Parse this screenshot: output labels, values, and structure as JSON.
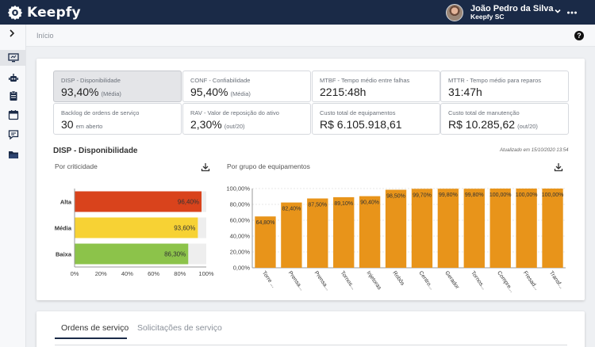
{
  "app": {
    "name": "Keepfy"
  },
  "user": {
    "name": "João Pedro da Silva",
    "org": "Keepfy SC"
  },
  "breadcrumb": "Início",
  "kpis": [
    {
      "label": "DISP - Disponibilidade",
      "value": "93,40%",
      "unit": "(Média)",
      "selected": true
    },
    {
      "label": "CONF - Confiabilidade",
      "value": "95,40%",
      "unit": "(Média)"
    },
    {
      "label": "MTBF - Tempo médio entre falhas",
      "value": "2215:48h",
      "unit": ""
    },
    {
      "label": "MTTR - Tempo médio para reparos",
      "value": "31:47h",
      "unit": ""
    },
    {
      "label": "Backlog de ordens de serviço",
      "value": "30",
      "unit": "em aberto"
    },
    {
      "label": "RAV - Valor de reposição do ativo",
      "value": "2,30%",
      "unit": "(out/20)"
    },
    {
      "label": "Custo total de equipamentos",
      "value": "R$ 6.105.918,61",
      "unit": ""
    },
    {
      "label": "Custo total de manutenção",
      "value": "R$ 10.285,62",
      "unit": "(out/20)"
    }
  ],
  "section": {
    "title": "DISP - Disponibilidade",
    "updated": "Atualizado em 15/10/2020 13:54",
    "left_title": "Por criticidade",
    "right_title": "Por grupo de equipamentos"
  },
  "chart_data": [
    {
      "type": "bar",
      "orientation": "horizontal",
      "categories": [
        "Alta",
        "Média",
        "Baixa"
      ],
      "values": [
        96.4,
        93.6,
        86.3
      ],
      "value_labels": [
        "96,40%",
        "93,60%",
        "86,30%"
      ],
      "colors": [
        "#d9431c",
        "#f7d234",
        "#8cc34a"
      ],
      "xlim": [
        0,
        100
      ],
      "xticks": [
        "0%",
        "20%",
        "40%",
        "60%",
        "80%",
        "100%"
      ],
      "background_to_max": true
    },
    {
      "type": "bar",
      "categories": [
        "Torre ...",
        "Prensa...",
        "Prensa...",
        "Tornos...",
        "Injetoras",
        "Robôs",
        "Centro...",
        "Gerador",
        "Tornos...",
        "Compre...",
        "Fresad...",
        "Transf..."
      ],
      "values": [
        64.8,
        82.4,
        87.5,
        89.1,
        90.4,
        98.5,
        99.7,
        99.8,
        99.8,
        100,
        100,
        100
      ],
      "value_labels": [
        "64,80%",
        "82,40%",
        "87,50%",
        "89,10%",
        "90,40%",
        "98,50%",
        "99,70%",
        "99,80%",
        "99,80%",
        "100,00%",
        "100,00%",
        "100,00%"
      ],
      "color": "#e8941a",
      "ylim": [
        0,
        100
      ],
      "yticks": [
        "0,00%",
        "20,00%",
        "40,00%",
        "60,00%",
        "80,00%",
        "100,00%"
      ]
    }
  ],
  "tabs": [
    "Ordens de serviço",
    "Solicitações de serviço"
  ],
  "icons": {
    "sidebar": [
      "dashboard-icon",
      "robot-icon",
      "clipboard-icon",
      "calendar-icon",
      "chat-icon",
      "folder-icon"
    ]
  },
  "colors": {
    "header": "#1a2a47",
    "accent": "#e8941a"
  }
}
